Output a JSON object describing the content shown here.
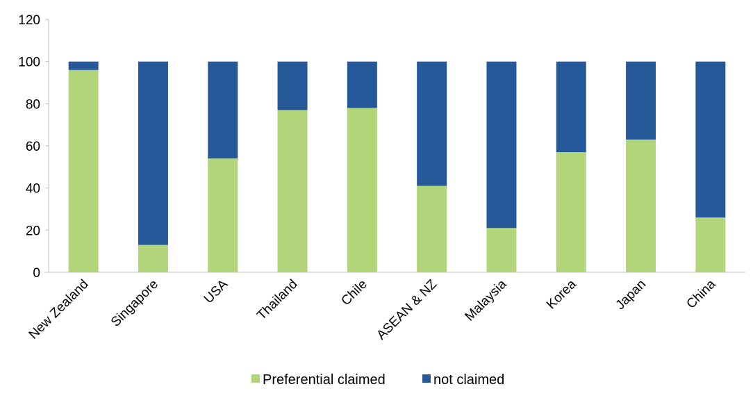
{
  "chart_data": {
    "type": "bar",
    "stacked": true,
    "categories": [
      "New Zealand",
      "Singapore",
      "USA",
      "Thailand",
      "Chile",
      "ASEAN & NZ",
      "Malaysia",
      "Korea",
      "Japan",
      "China"
    ],
    "series": [
      {
        "name": "Preferential claimed",
        "color": "#b3d57a",
        "values": [
          96,
          13,
          54,
          77,
          78,
          41,
          21,
          57,
          63,
          26
        ]
      },
      {
        "name": "not claimed",
        "color": "#25599a",
        "values": [
          4,
          87,
          46,
          23,
          22,
          59,
          79,
          43,
          37,
          74
        ]
      }
    ],
    "yticks": [
      0,
      20,
      40,
      60,
      80,
      100,
      120
    ],
    "ylim": [
      0,
      120
    ],
    "grid": false,
    "legend": "bottom-center"
  }
}
